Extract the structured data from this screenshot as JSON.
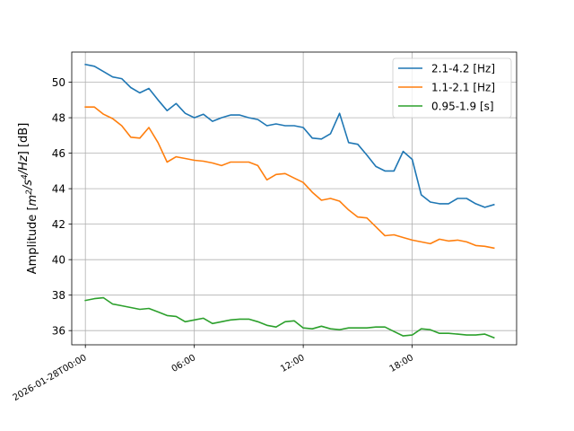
{
  "chart_data": {
    "type": "line",
    "ylabel": "Amplitude [$m^2/s^4/Hz$] [dB]",
    "x_tick_labels": [
      "2026-01-28T00:00",
      "06:00",
      "12:00",
      "18:00"
    ],
    "x_ticks": [
      0,
      6,
      12,
      18
    ],
    "xlim": [
      -0.75,
      23.75
    ],
    "ylim": [
      35.2,
      51.7
    ],
    "y_ticks": [
      36,
      38,
      40,
      42,
      44,
      46,
      48,
      50
    ],
    "grid": true,
    "legend_position": "top-right",
    "x": [
      0,
      0.5,
      1,
      1.5,
      2,
      2.5,
      3,
      3.5,
      4,
      4.5,
      5,
      5.5,
      6,
      6.5,
      7,
      7.5,
      8,
      8.5,
      9,
      9.5,
      10,
      10.5,
      11,
      11.5,
      12,
      12.5,
      13,
      13.5,
      14,
      14.5,
      15,
      15.5,
      16,
      16.5,
      17,
      17.5,
      18,
      18.5,
      19,
      19.5,
      20,
      20.5,
      21,
      21.5,
      22,
      22.5
    ],
    "series": [
      {
        "name": "2.1-4.2 [Hz]",
        "color": "#1f77b4",
        "values": [
          51.0,
          50.9,
          50.6,
          50.3,
          50.2,
          49.7,
          49.4,
          49.65,
          49.0,
          48.4,
          48.8,
          48.25,
          48.0,
          48.2,
          47.8,
          48.0,
          48.15,
          48.15,
          48.0,
          47.9,
          47.55,
          47.65,
          47.55,
          47.55,
          47.45,
          46.85,
          46.8,
          47.1,
          48.25,
          46.6,
          46.5,
          45.9,
          45.25,
          45.0,
          45.0,
          46.1,
          45.65,
          43.65,
          43.25,
          43.15,
          43.15,
          43.45,
          43.45,
          43.15,
          42.95,
          43.1
        ]
      },
      {
        "name": "1.1-2.1 [Hz]",
        "color": "#ff7f0e",
        "values": [
          48.6,
          48.6,
          48.2,
          47.95,
          47.55,
          46.9,
          46.85,
          47.45,
          46.6,
          45.5,
          45.8,
          45.7,
          45.6,
          45.55,
          45.45,
          45.3,
          45.5,
          45.5,
          45.5,
          45.3,
          44.5,
          44.8,
          44.85,
          44.6,
          44.35,
          43.8,
          43.35,
          43.45,
          43.3,
          42.8,
          42.4,
          42.35,
          41.85,
          41.35,
          41.4,
          41.25,
          41.1,
          41.0,
          40.9,
          41.15,
          41.05,
          41.1,
          41.0,
          40.8,
          40.75,
          40.65
        ]
      },
      {
        "name": "0.95-1.9 [s]",
        "color": "#2ca02c",
        "values": [
          37.7,
          37.8,
          37.85,
          37.5,
          37.4,
          37.3,
          37.2,
          37.25,
          37.05,
          36.85,
          36.8,
          36.5,
          36.6,
          36.7,
          36.4,
          36.5,
          36.6,
          36.65,
          36.65,
          36.5,
          36.3,
          36.2,
          36.5,
          36.55,
          36.15,
          36.1,
          36.25,
          36.1,
          36.05,
          36.15,
          36.15,
          36.15,
          36.2,
          36.2,
          35.95,
          35.7,
          35.75,
          36.1,
          36.05,
          35.85,
          35.85,
          35.8,
          35.75,
          35.75,
          35.8,
          35.6
        ]
      }
    ]
  }
}
